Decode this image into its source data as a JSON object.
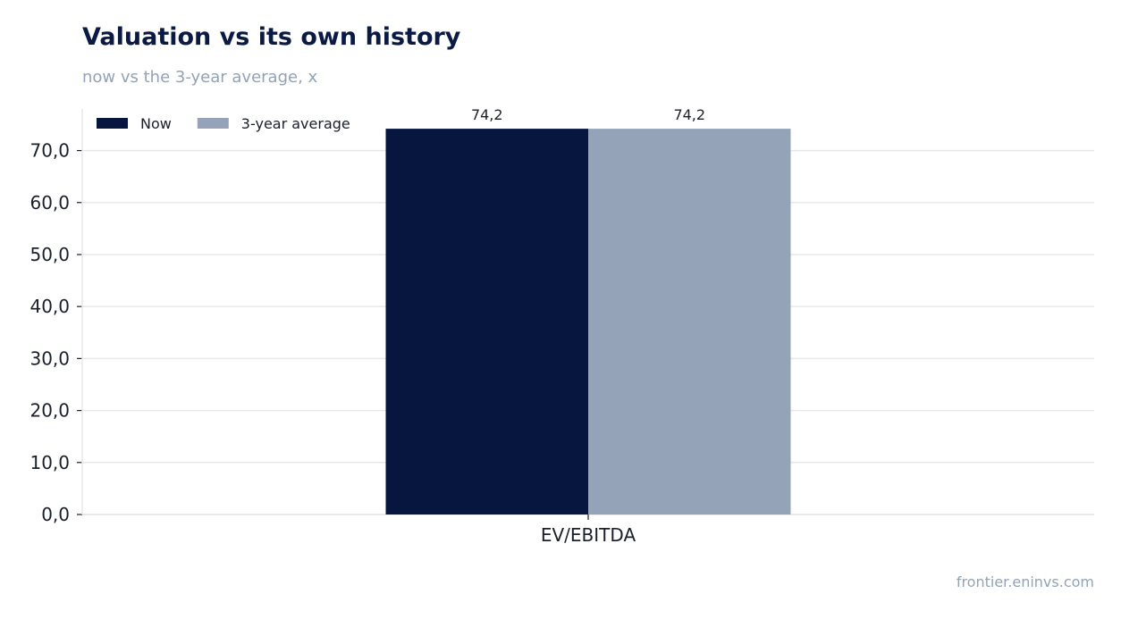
{
  "header": {
    "title": "Valuation vs its own history",
    "subtitle": "now vs the 3-year average, x"
  },
  "footer": {
    "source": "frontier.eninvs.com"
  },
  "chart_data": {
    "type": "bar",
    "categories": [
      "EV/EBITDA"
    ],
    "series": [
      {
        "name": "Now",
        "values": [
          74.2
        ],
        "labels": [
          "74,2"
        ],
        "color": "#06163f"
      },
      {
        "name": "3-year average",
        "values": [
          74.2
        ],
        "labels": [
          "74,2"
        ],
        "color": "#94a3b7"
      }
    ],
    "ylim": [
      0,
      78
    ],
    "yticks": [
      0,
      10,
      20,
      30,
      40,
      50,
      60,
      70
    ],
    "ytick_labels": [
      "0,0",
      "10,0",
      "20,0",
      "30,0",
      "40,0",
      "50,0",
      "60,0",
      "70,0"
    ],
    "grid": true,
    "legend": "top-left",
    "colors": {
      "grid": "#e6e8ec",
      "axis": "#e6e8ec",
      "tick": "#1a1f2e"
    }
  }
}
